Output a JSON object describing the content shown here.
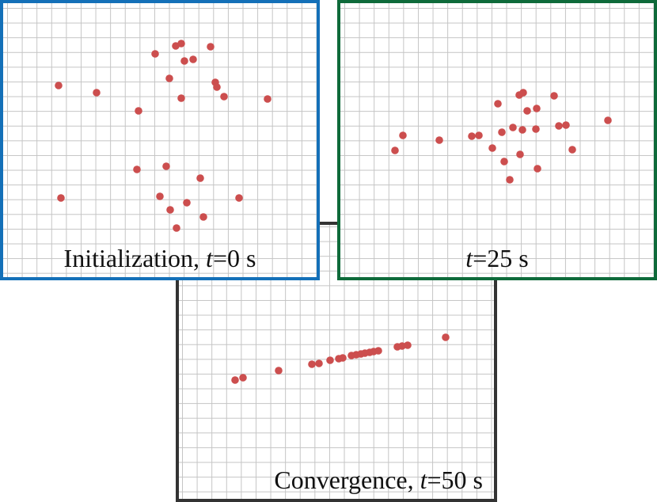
{
  "colors": {
    "point": "#cc4e4e",
    "frame_init": "#1470b8",
    "frame_mid": "#0e6a3a",
    "frame_conv": "#333333",
    "grid": "#c4c4c4"
  },
  "panels": {
    "init": {
      "caption_prefix": "Initialization, ",
      "caption_var": "t",
      "caption_suffix": "=0 s",
      "points": [
        [
          70,
          104
        ],
        [
          118,
          113
        ],
        [
          192,
          64
        ],
        [
          218,
          54
        ],
        [
          225,
          51
        ],
        [
          262,
          55
        ],
        [
          229,
          73
        ],
        [
          240,
          71
        ],
        [
          210,
          95
        ],
        [
          268,
          100
        ],
        [
          270,
          106
        ],
        [
          279,
          118
        ],
        [
          225,
          120
        ],
        [
          334,
          121
        ],
        [
          171,
          136
        ],
        [
          169,
          210
        ],
        [
          206,
          206
        ],
        [
          249,
          221
        ],
        [
          73,
          246
        ],
        [
          198,
          244
        ],
        [
          298,
          246
        ],
        [
          232,
          252
        ],
        [
          211,
          261
        ],
        [
          253,
          270
        ],
        [
          219,
          284
        ]
      ]
    },
    "mid": {
      "caption_var": "t",
      "caption_suffix": "=25 s",
      "points": [
        [
          79,
          167
        ],
        [
          69,
          186
        ],
        [
          125,
          173
        ],
        [
          166,
          168
        ],
        [
          175,
          167
        ],
        [
          199,
          127
        ],
        [
          226,
          116
        ],
        [
          231,
          113
        ],
        [
          236,
          136
        ],
        [
          248,
          133
        ],
        [
          270,
          117
        ],
        [
          204,
          163
        ],
        [
          218,
          157
        ],
        [
          230,
          160
        ],
        [
          247,
          159
        ],
        [
          276,
          155
        ],
        [
          285,
          154
        ],
        [
          338,
          148
        ],
        [
          192,
          183
        ],
        [
          207,
          200
        ],
        [
          227,
          191
        ],
        [
          293,
          185
        ],
        [
          249,
          209
        ],
        [
          214,
          223
        ]
      ]
    },
    "conv": {
      "caption_prefix": "Convergence, ",
      "caption_var": "t",
      "caption_suffix": "=50 s",
      "points": [
        [
          71,
          196
        ],
        [
          81,
          193
        ],
        [
          126,
          184
        ],
        [
          168,
          176
        ],
        [
          177,
          175
        ],
        [
          191,
          171
        ],
        [
          202,
          169
        ],
        [
          207,
          168
        ],
        [
          218,
          165
        ],
        [
          224,
          164
        ],
        [
          230,
          163
        ],
        [
          235,
          162
        ],
        [
          241,
          161
        ],
        [
          246,
          160
        ],
        [
          252,
          159
        ],
        [
          276,
          154
        ],
        [
          282,
          153
        ],
        [
          289,
          152
        ],
        [
          337,
          142
        ]
      ]
    }
  }
}
